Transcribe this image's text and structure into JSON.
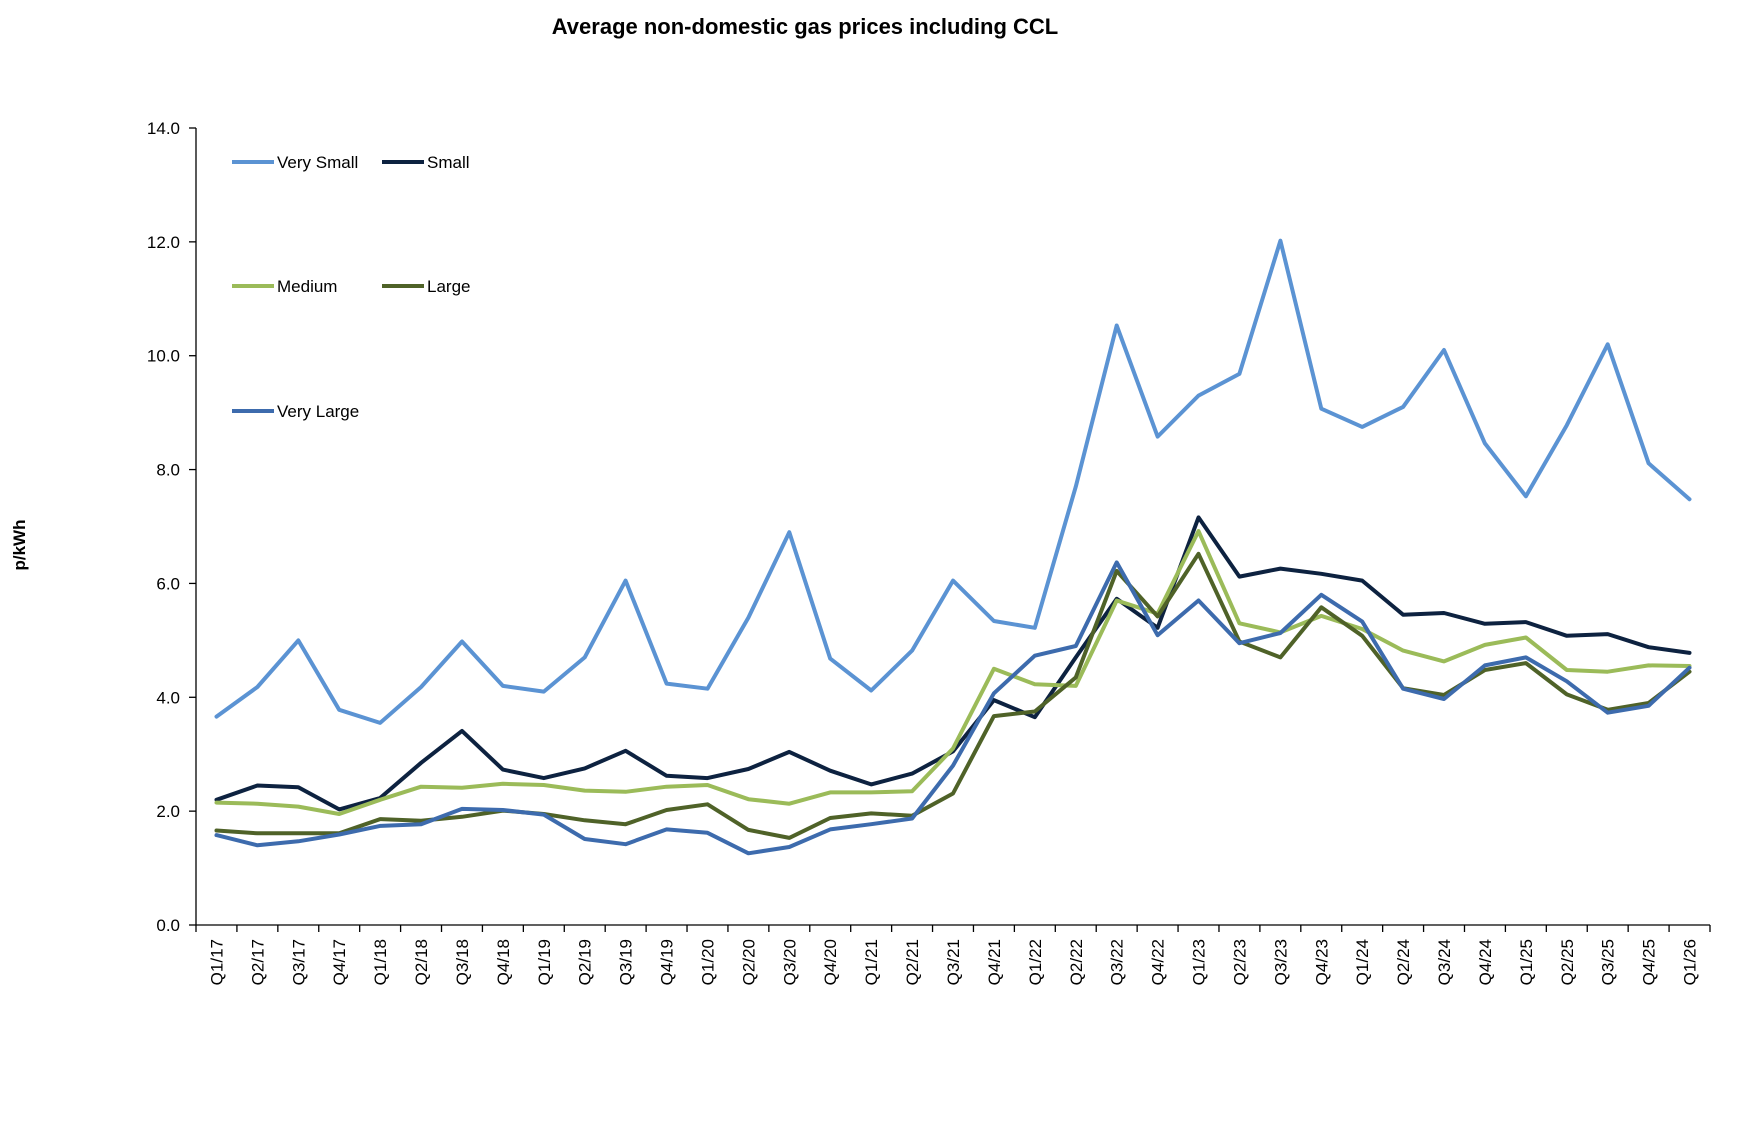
{
  "chart_data": {
    "type": "line",
    "title": "Average non-domestic gas prices including CCL",
    "ylabel": "p/kWh",
    "xlabel": "",
    "ylim": [
      0,
      14
    ],
    "y_ticks": [
      "0.0",
      "2.0",
      "4.0",
      "6.0",
      "8.0",
      "10.0",
      "12.0",
      "14.0"
    ],
    "grid": false,
    "legend_position": "top-left",
    "categories": [
      "Q1/17",
      "Q2/17",
      "Q3/17",
      "Q4/17",
      "Q1/18",
      "Q2/18",
      "Q3/18",
      "Q4/18",
      "Q1/19",
      "Q2/19",
      "Q3/19",
      "Q4/19",
      "Q1/20",
      "Q2/20",
      "Q3/20",
      "Q4/20",
      "Q1/21",
      "Q2/21",
      "Q3/21",
      "Q4/21",
      "Q1/22",
      "Q2/22",
      "Q3/22",
      "Q4/22",
      "Q1/23",
      "Q2/23",
      "Q3/23",
      "Q4/23",
      "Q1/24",
      "Q2/24",
      "Q3/24",
      "Q4/24",
      "Q1/25",
      "Q2/25",
      "Q3/25",
      "Q4/25",
      "Q1/26"
    ],
    "series": [
      {
        "name": "Very Small",
        "color": "#5B93D3",
        "values": [
          3.66,
          4.18,
          5.0,
          3.78,
          3.55,
          4.18,
          4.98,
          4.2,
          4.1,
          4.7,
          6.05,
          4.24,
          4.15,
          5.4,
          6.9,
          4.68,
          4.12,
          4.82,
          6.05,
          5.34,
          5.22,
          7.7,
          10.53,
          8.58,
          9.3,
          9.68,
          12.02,
          9.07,
          8.75,
          9.1,
          10.1,
          8.46,
          7.53,
          8.78,
          10.2,
          8.11,
          7.48
        ]
      },
      {
        "name": "Small",
        "color": "#0D2240",
        "values": [
          2.2,
          2.45,
          2.42,
          2.03,
          2.23,
          2.85,
          3.41,
          2.73,
          2.58,
          2.75,
          3.06,
          2.62,
          2.58,
          2.74,
          3.04,
          2.71,
          2.47,
          2.66,
          3.05,
          3.95,
          3.65,
          4.7,
          5.73,
          5.22,
          7.16,
          6.12,
          6.26,
          6.17,
          6.05,
          5.45,
          5.48,
          5.29,
          5.32,
          5.08,
          5.11,
          4.88,
          4.78
        ]
      },
      {
        "name": "Medium",
        "color": "#9BBB59",
        "values": [
          2.15,
          2.13,
          2.08,
          1.95,
          2.2,
          2.43,
          2.41,
          2.48,
          2.46,
          2.36,
          2.34,
          2.43,
          2.46,
          2.21,
          2.13,
          2.33,
          2.33,
          2.35,
          3.1,
          4.5,
          4.23,
          4.2,
          5.7,
          5.47,
          6.92,
          5.3,
          5.14,
          5.43,
          5.2,
          4.82,
          4.63,
          4.92,
          5.05,
          4.48,
          4.45,
          4.56,
          4.55
        ]
      },
      {
        "name": "Large",
        "color": "#4F6228",
        "values": [
          1.66,
          1.61,
          1.61,
          1.61,
          1.86,
          1.83,
          1.9,
          2.01,
          1.95,
          1.84,
          1.77,
          2.02,
          2.12,
          1.67,
          1.53,
          1.88,
          1.96,
          1.92,
          2.31,
          3.67,
          3.75,
          4.35,
          6.22,
          5.42,
          6.52,
          4.98,
          4.7,
          5.58,
          5.08,
          4.16,
          4.04,
          4.48,
          4.6,
          4.05,
          3.78,
          3.9,
          4.45
        ]
      },
      {
        "name": "Very Large",
        "color": "#3D6BAD",
        "values": [
          1.58,
          1.4,
          1.47,
          1.59,
          1.74,
          1.77,
          2.04,
          2.02,
          1.94,
          1.51,
          1.42,
          1.68,
          1.62,
          1.26,
          1.37,
          1.68,
          1.77,
          1.87,
          2.8,
          4.07,
          4.73,
          4.9,
          6.37,
          5.09,
          5.7,
          4.95,
          5.13,
          5.8,
          5.33,
          4.15,
          3.97,
          4.56,
          4.7,
          4.28,
          3.73,
          3.85,
          4.52
        ]
      }
    ]
  }
}
